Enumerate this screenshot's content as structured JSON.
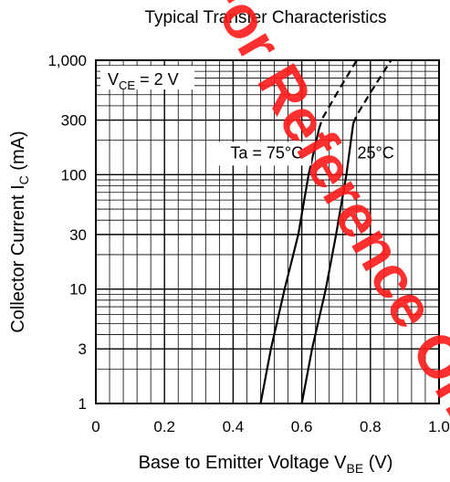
{
  "chart_data": {
    "type": "line",
    "title": "Typical Transfer Characteristics",
    "xlabel": {
      "main": "Base to Emitter Voltage  V",
      "sub": "BE",
      "unit": "  (V)"
    },
    "ylabel": {
      "main": "Collector Current  I",
      "sub": "C",
      "unit": "  (mA)"
    },
    "xlim": [
      0,
      1.0
    ],
    "ylim": [
      1,
      1000
    ],
    "yscale": "log",
    "grid": true,
    "xticks": [
      0,
      0.2,
      0.4,
      0.6,
      0.8,
      1.0
    ],
    "xtick_labels": [
      "0",
      "0.2",
      "0.4",
      "0.6",
      "0.8",
      "1.0"
    ],
    "yticks": [
      1,
      3,
      10,
      30,
      100,
      300,
      1000
    ],
    "ytick_labels": [
      "1",
      "3",
      "10",
      "30",
      "100",
      "300",
      "1,000"
    ],
    "condition": {
      "prefix": "V",
      "sub": "CE",
      "suffix": " = 2 V"
    },
    "series": [
      {
        "label": "Ta = 75°C",
        "solid": [
          [
            0.48,
            1
          ],
          [
            0.51,
            3
          ],
          [
            0.55,
            10
          ],
          [
            0.59,
            30
          ],
          [
            0.62,
            100
          ],
          [
            0.65,
            250
          ]
        ],
        "dashed": [
          [
            0.65,
            250
          ],
          [
            0.66,
            310
          ],
          [
            0.7,
            500
          ],
          [
            0.76,
            1000
          ]
        ]
      },
      {
        "label": "25°C",
        "solid": [
          [
            0.6,
            1
          ],
          [
            0.63,
            3
          ],
          [
            0.67,
            10
          ],
          [
            0.7,
            30
          ],
          [
            0.73,
            100
          ],
          [
            0.75,
            280
          ]
        ],
        "dashed": [
          [
            0.75,
            280
          ],
          [
            0.76,
            330
          ],
          [
            0.8,
            520
          ],
          [
            0.86,
            1000
          ]
        ]
      }
    ],
    "watermark": "For Reference Only"
  }
}
